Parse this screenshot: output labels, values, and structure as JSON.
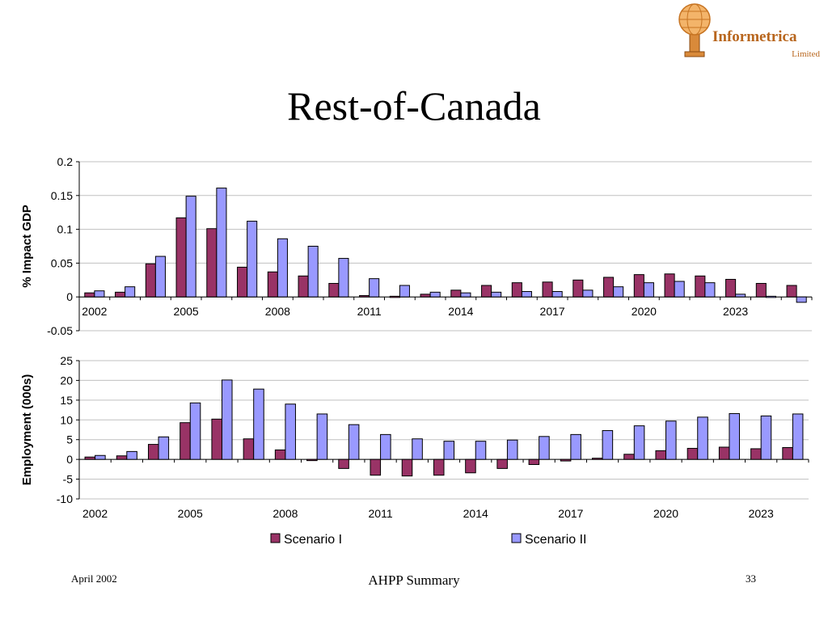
{
  "logo": {
    "name": "Informetrica",
    "sub": "Limited"
  },
  "title": "Rest-of-Canada",
  "colors": {
    "scenario1": "#993366",
    "scenario2": "#9999ff",
    "grid": "#c0c0c0"
  },
  "chart_data": [
    {
      "type": "bar",
      "ylabel": "% Impact GDP",
      "ylim": [
        -0.05,
        0.2
      ],
      "yticks": [
        -0.05,
        0,
        0.05,
        0.1,
        0.15,
        0.2
      ],
      "ytick_labels": [
        "-0.05",
        "0",
        "0.05",
        "0.1",
        "0.15",
        "0.2"
      ],
      "grid": true,
      "categories": [
        "2002",
        "2003",
        "2004",
        "2005",
        "2006",
        "2007",
        "2008",
        "2009",
        "2010",
        "2011",
        "2012",
        "2013",
        "2014",
        "2015",
        "2016",
        "2017",
        "2018",
        "2019",
        "2020",
        "2021",
        "2022",
        "2023",
        "2024",
        "2025"
      ],
      "xtick_labels": [
        "2002",
        "2005",
        "2008",
        "2011",
        "2014",
        "2017",
        "2020",
        "2023"
      ],
      "series": [
        {
          "name": "Scenario I",
          "values": [
            0.006,
            0.007,
            0.049,
            0.117,
            0.101,
            0.044,
            0.037,
            0.031,
            0.02,
            0.002,
            0.001,
            0.004,
            0.01,
            0.017,
            0.021,
            0.022,
            0.025,
            0.029,
            0.033,
            0.034,
            0.031,
            0.026,
            0.02,
            0.017
          ]
        },
        {
          "name": "Scenario II",
          "values": [
            0.009,
            0.015,
            0.06,
            0.149,
            0.161,
            0.112,
            0.086,
            0.075,
            0.057,
            0.027,
            0.017,
            0.007,
            0.006,
            0.007,
            0.008,
            0.008,
            0.01,
            0.015,
            0.021,
            0.023,
            0.021,
            0.004,
            0.001,
            -0.008
          ]
        }
      ]
    },
    {
      "type": "bar",
      "ylabel": "Employment (000s)",
      "ylim": [
        -10,
        25
      ],
      "yticks": [
        -10,
        -5,
        0,
        5,
        10,
        15,
        20,
        25
      ],
      "ytick_labels": [
        "-10",
        "-5",
        "0",
        "5",
        "10",
        "15",
        "20",
        "25"
      ],
      "grid": true,
      "categories": [
        "2002",
        "2003",
        "2004",
        "2005",
        "2006",
        "2007",
        "2008",
        "2009",
        "2010",
        "2011",
        "2012",
        "2013",
        "2014",
        "2015",
        "2016",
        "2017",
        "2018",
        "2019",
        "2020",
        "2021",
        "2022",
        "2023",
        "2024"
      ],
      "xtick_labels": [
        "2002",
        "2005",
        "2008",
        "2011",
        "2014",
        "2017",
        "2020",
        "2023"
      ],
      "series": [
        {
          "name": "Scenario I",
          "values": [
            0.6,
            0.9,
            3.8,
            9.3,
            10.2,
            5.2,
            2.4,
            -0.3,
            -2.3,
            -4.0,
            -4.2,
            -4.0,
            -3.4,
            -2.3,
            -1.3,
            -0.4,
            0.3,
            1.3,
            2.2,
            2.8,
            3.1,
            2.7,
            3.0
          ]
        },
        {
          "name": "Scenario II",
          "values": [
            1.0,
            2.0,
            5.7,
            14.3,
            20.1,
            17.8,
            14.0,
            11.5,
            8.8,
            6.3,
            5.2,
            4.6,
            4.6,
            4.9,
            5.8,
            6.3,
            7.3,
            8.5,
            9.7,
            10.7,
            11.6,
            11.0,
            11.5
          ]
        }
      ],
      "legend": {
        "position": "bottom",
        "items": [
          "Scenario I",
          "Scenario II"
        ]
      }
    }
  ],
  "footer": {
    "left": "April 2002",
    "center": "AHPP Summary",
    "right": "33"
  }
}
